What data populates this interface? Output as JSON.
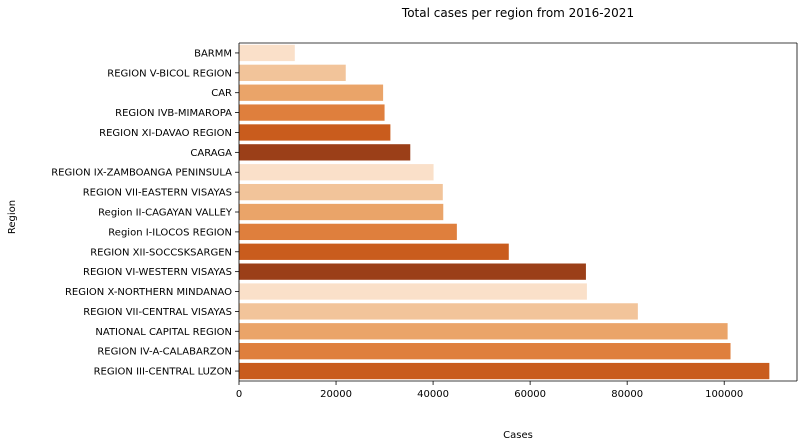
{
  "chart_data": {
    "type": "bar",
    "orientation": "horizontal",
    "title": "Total cases per region from 2016-2021",
    "xlabel": "Cases",
    "ylabel": "Region",
    "xlim": [
      0,
      115000
    ],
    "xticks": [
      0,
      20000,
      40000,
      60000,
      80000,
      100000
    ],
    "grid": false,
    "categories": [
      "BARMM",
      "REGION V-BICOL REGION",
      "CAR",
      "REGION IVB-MIMAROPA",
      "REGION XI-DAVAO REGION",
      "CARAGA",
      "REGION IX-ZAMBOANGA PENINSULA",
      "REGION VII-EASTERN VISAYAS",
      "Region II-CAGAYAN VALLEY",
      "Region I-ILOCOS REGION",
      "REGION XII-SOCCSKSARGEN",
      "REGION VI-WESTERN VISAYAS",
      "REGION X-NORTHERN MINDANAO",
      "REGION VII-CENTRAL VISAYAS",
      "NATIONAL CAPITAL REGION",
      "REGION IV-A-CALABARZON",
      "REGION III-CENTRAL LUZON"
    ],
    "values": [
      11500,
      22000,
      29700,
      30000,
      31200,
      35300,
      40100,
      42000,
      42100,
      44900,
      55600,
      71500,
      71700,
      82200,
      100700,
      101300,
      109300
    ],
    "colors": [
      "#fae0c9",
      "#f2c49a",
      "#eaa469",
      "#df7f3d",
      "#c95c1d",
      "#9b3f18",
      "#fae0c9",
      "#f2c49a",
      "#eaa469",
      "#df7f3d",
      "#c95c1d",
      "#9b3f18",
      "#fae0c9",
      "#f2c49a",
      "#eaa469",
      "#df7f3d",
      "#c95c1d"
    ]
  }
}
